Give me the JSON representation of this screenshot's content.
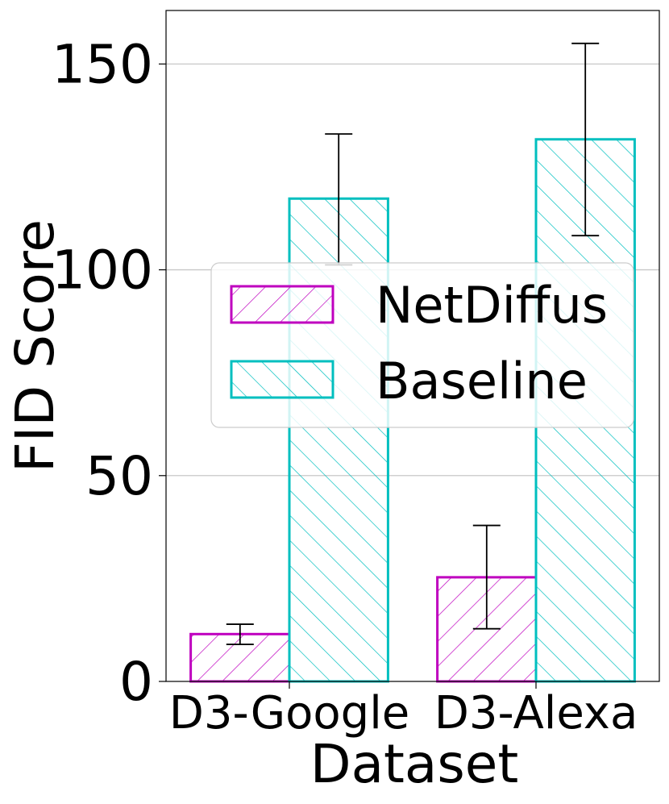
{
  "chart_data": {
    "type": "bar",
    "xlabel": "Dataset",
    "ylabel": "FID Score",
    "categories": [
      "D3-Google",
      "D3-Alexa"
    ],
    "series": [
      {
        "name": "NetDiffus",
        "values": [
          11.5,
          25.3
        ],
        "err_low": [
          9.0,
          12.8
        ],
        "err_high": [
          13.9,
          37.9
        ],
        "color": "#bf00bf",
        "hatch": "forward"
      },
      {
        "name": "Baseline",
        "values": [
          117.3,
          131.7
        ],
        "err_low": [
          101.2,
          108.3
        ],
        "err_high": [
          133.0,
          155.0
        ],
        "color": "#00bfbf",
        "hatch": "backward"
      }
    ],
    "ylim": [
      0,
      163
    ],
    "yticks": [
      "0",
      "50",
      "100",
      "150"
    ],
    "ytick_values": [
      0,
      50,
      100,
      150
    ],
    "grid": "y",
    "legend": "center"
  }
}
